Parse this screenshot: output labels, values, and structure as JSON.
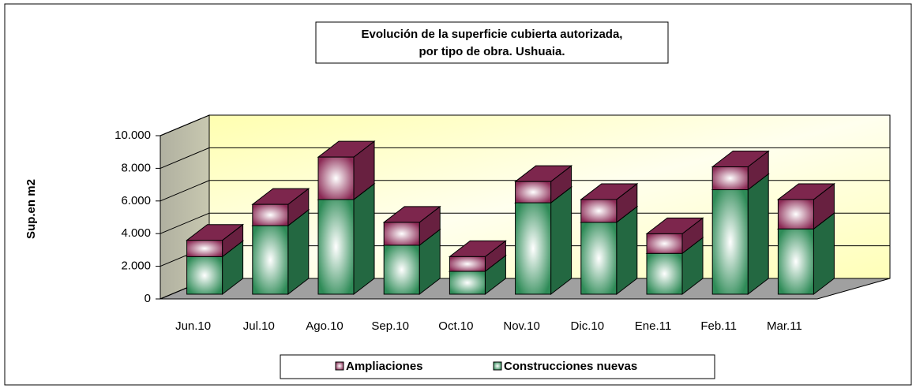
{
  "chart_data": {
    "type": "bar3d_stacked",
    "title_lines": [
      "Evolución de la superficie cubierta autorizada,",
      "por tipo de obra. Ushuaia."
    ],
    "ylabel": "Sup.en m2",
    "categories": [
      "Jun.10",
      "Jul.10",
      "Ago.10",
      "Sep.10",
      "Oct.10",
      "Nov.10",
      "Dic.10",
      "Ene.11",
      "Feb.11",
      "Mar.11"
    ],
    "series": [
      {
        "name": "Construcciones nuevas",
        "color": "#2e8b57",
        "values": [
          2300,
          4200,
          5800,
          3000,
          1400,
          5600,
          4400,
          2500,
          6400,
          4000
        ]
      },
      {
        "name": "Ampliaciones",
        "color": "#8b2a55",
        "values": [
          1000,
          1300,
          2600,
          1400,
          900,
          1300,
          1400,
          1200,
          1400,
          1800
        ]
      }
    ],
    "ylim": [
      0,
      10000
    ],
    "yticks": [
      0,
      {
        "value": 2000,
        "label": "2.000"
      },
      {
        "value": 4000,
        "label": "4.000"
      },
      {
        "value": 6000,
        "label": "6.000"
      },
      {
        "value": 8000,
        "label": "8.000"
      },
      {
        "value": 10000,
        "label": "10.000"
      }
    ],
    "grid": true
  }
}
